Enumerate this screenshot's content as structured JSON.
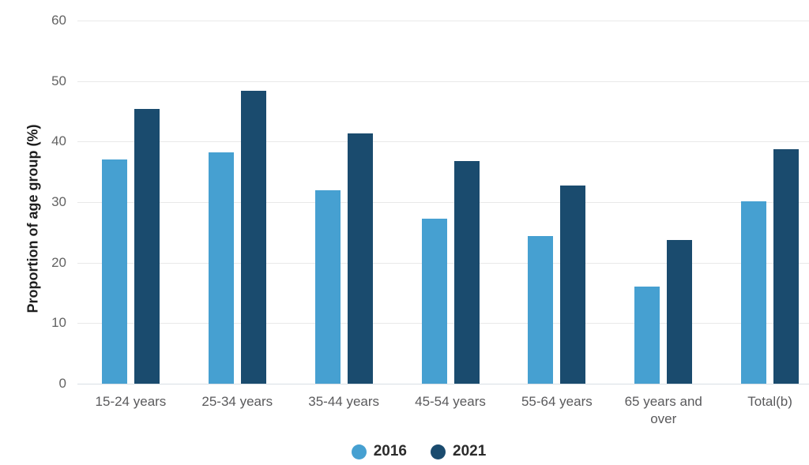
{
  "chart_data": {
    "type": "bar",
    "title": "",
    "categories": [
      "15-24 years",
      "25-34 years",
      "35-44 years",
      "45-54 years",
      "55-64 years",
      "65 years and over",
      "Total(b)"
    ],
    "series": [
      {
        "name": "2016",
        "color": "#46a0d1",
        "values": [
          37.1,
          38.2,
          32.0,
          27.3,
          24.4,
          16.0,
          30.1
        ]
      },
      {
        "name": "2021",
        "color": "#1a4b6e",
        "values": [
          45.4,
          48.4,
          41.3,
          36.8,
          32.8,
          23.7,
          38.7
        ]
      }
    ],
    "xlabel": "",
    "ylabel": "Proportion of age group (%)",
    "ylim": [
      0,
      60
    ],
    "yticks": [
      0,
      10,
      20,
      30,
      40,
      50,
      60
    ],
    "grid": true,
    "legend_position": "bottom",
    "background_color": "#ffffff",
    "gridline_color": "#e9e9e9",
    "baseline_color": "#d9dfe5",
    "tick_label_color": "#636363",
    "category_label_color": "#5a5a5c",
    "axis_title_color": "#1d1d1d"
  }
}
